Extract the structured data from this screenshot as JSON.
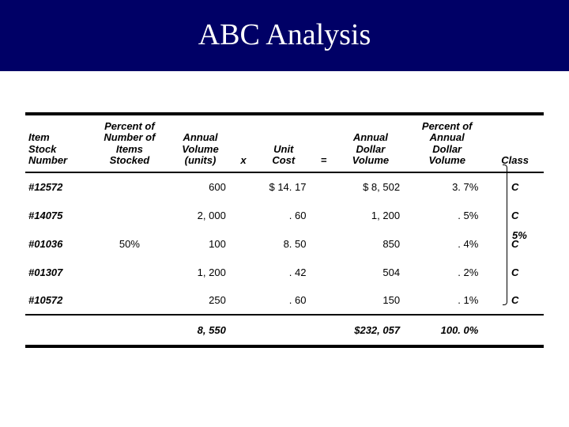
{
  "title": "ABC Analysis",
  "columns": {
    "item": "Item\nStock\nNumber",
    "pct_items": "Percent of\nNumber of\nItems\nStocked",
    "annual_vol": "Annual\nVolume\n(units)",
    "x": "x",
    "unit_cost": "Unit\nCost",
    "eq": "=",
    "dollar_vol": "Annual\nDollar\nVolume",
    "pct_dollar": "Percent of\nAnnual\nDollar\nVolume",
    "class": "Class"
  },
  "rows": [
    {
      "item": "#12572",
      "pct": "",
      "vol": "600",
      "cost": "$ 14. 17",
      "dollar": "$ 8, 502",
      "pdv": "3. 7%",
      "class": "C"
    },
    {
      "item": "#14075",
      "pct": "",
      "vol": "2, 000",
      "cost": ". 60",
      "dollar": "1, 200",
      "pdv": ". 5%",
      "class": "C"
    },
    {
      "item": "#01036",
      "pct": "50%",
      "vol": "100",
      "cost": "8. 50",
      "dollar": "850",
      "pdv": ". 4%",
      "class": "C"
    },
    {
      "item": "#01307",
      "pct": "",
      "vol": "1, 200",
      "cost": ". 42",
      "dollar": "504",
      "pdv": ". 2%",
      "class": "C"
    },
    {
      "item": "#10572",
      "pct": "",
      "vol": "250",
      "cost": ". 60",
      "dollar": "150",
      "pdv": ". 1%",
      "class": "C"
    }
  ],
  "totals": {
    "vol": "8, 550",
    "dollar": "$232, 057",
    "pdv": "100. 0%"
  },
  "bracket_label": "5%",
  "colors": {
    "title_bg": "#000066",
    "title_fg": "#ffffff",
    "rule": "#000000"
  }
}
